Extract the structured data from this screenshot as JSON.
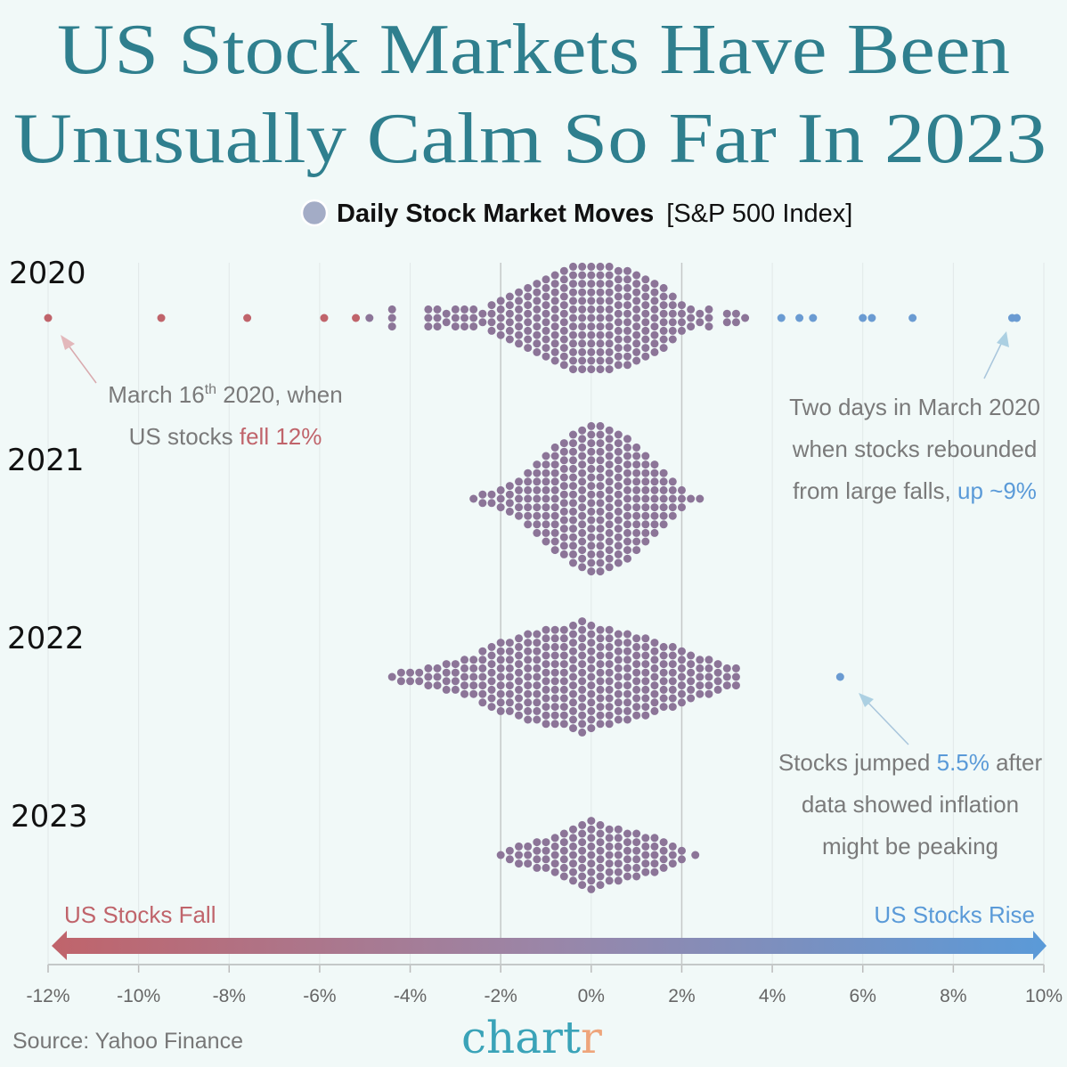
{
  "chart_data": {
    "type": "scatter",
    "subtype": "beeswarm",
    "title_lines": [
      "US Stock Markets Have Been",
      "Unusually Calm So Far In 2023"
    ],
    "legend": {
      "marker_label": "Daily Stock Market Moves",
      "suffix": "[S&P 500 Index]",
      "marker_color": "#a3acc6",
      "placement": "top-center"
    },
    "xlim": [
      -12,
      10
    ],
    "x_ticks": [
      "-12%",
      "-10%",
      "-8%",
      "-6%",
      "-4%",
      "-2%",
      "0%",
      "2%",
      "4%",
      "6%",
      "8%",
      "10%"
    ],
    "x_tick_values": [
      -12,
      -10,
      -8,
      -6,
      -4,
      -2,
      0,
      2,
      4,
      6,
      8,
      10
    ],
    "grid": true,
    "direction_labels": {
      "fall": "US Stocks Fall",
      "rise": "US Stocks Rise"
    },
    "colors": {
      "fall": "#c0646b",
      "neutral": "#8c7598",
      "rise": "#6a9bd2"
    },
    "series": [
      {
        "name": "2020",
        "bins": [
          [
            -12.0,
            1
          ],
          [
            -9.5,
            1
          ],
          [
            -7.6,
            1
          ],
          [
            -5.9,
            1
          ],
          [
            -5.2,
            1
          ],
          [
            -4.9,
            1
          ],
          [
            -4.4,
            3
          ],
          [
            -3.6,
            3
          ],
          [
            -3.4,
            3
          ],
          [
            -3.2,
            2
          ],
          [
            -3.0,
            3
          ],
          [
            -2.8,
            3
          ],
          [
            -2.6,
            3
          ],
          [
            -2.4,
            2
          ],
          [
            -2.2,
            4
          ],
          [
            -2.0,
            5
          ],
          [
            -1.8,
            6
          ],
          [
            -1.6,
            7
          ],
          [
            -1.4,
            8
          ],
          [
            -1.2,
            9
          ],
          [
            -1.0,
            10
          ],
          [
            -0.8,
            11
          ],
          [
            -0.6,
            12
          ],
          [
            -0.4,
            13
          ],
          [
            -0.2,
            13
          ],
          [
            0.0,
            13
          ],
          [
            0.2,
            13
          ],
          [
            0.4,
            13
          ],
          [
            0.6,
            12
          ],
          [
            0.8,
            12
          ],
          [
            1.0,
            11
          ],
          [
            1.2,
            10
          ],
          [
            1.4,
            9
          ],
          [
            1.6,
            8
          ],
          [
            1.8,
            6
          ],
          [
            2.0,
            4
          ],
          [
            2.2,
            3
          ],
          [
            2.4,
            2
          ],
          [
            2.6,
            3
          ],
          [
            3.0,
            2
          ],
          [
            3.2,
            2
          ],
          [
            3.4,
            1
          ],
          [
            4.2,
            1
          ],
          [
            4.6,
            1
          ],
          [
            4.9,
            1
          ],
          [
            6.0,
            1
          ],
          [
            6.2,
            1
          ],
          [
            7.1,
            1
          ],
          [
            9.3,
            1
          ],
          [
            9.4,
            1
          ]
        ]
      },
      {
        "name": "2021",
        "bins": [
          [
            -2.6,
            1
          ],
          [
            -2.4,
            2
          ],
          [
            -2.2,
            2
          ],
          [
            -2.0,
            3
          ],
          [
            -1.8,
            4
          ],
          [
            -1.6,
            5
          ],
          [
            -1.4,
            7
          ],
          [
            -1.2,
            9
          ],
          [
            -1.0,
            11
          ],
          [
            -0.8,
            13
          ],
          [
            -0.6,
            14
          ],
          [
            -0.4,
            16
          ],
          [
            -0.2,
            17
          ],
          [
            0.0,
            18
          ],
          [
            0.2,
            18
          ],
          [
            0.4,
            17
          ],
          [
            0.6,
            16
          ],
          [
            0.8,
            15
          ],
          [
            1.0,
            13
          ],
          [
            1.2,
            11
          ],
          [
            1.4,
            9
          ],
          [
            1.6,
            7
          ],
          [
            1.8,
            5
          ],
          [
            2.0,
            3
          ],
          [
            2.2,
            1
          ],
          [
            2.4,
            1
          ]
        ]
      },
      {
        "name": "2022",
        "bins": [
          [
            -4.4,
            1
          ],
          [
            -4.2,
            2
          ],
          [
            -4.0,
            2
          ],
          [
            -3.8,
            2
          ],
          [
            -3.6,
            3
          ],
          [
            -3.4,
            3
          ],
          [
            -3.2,
            4
          ],
          [
            -3.0,
            4
          ],
          [
            -2.8,
            5
          ],
          [
            -2.6,
            5
          ],
          [
            -2.4,
            7
          ],
          [
            -2.2,
            8
          ],
          [
            -2.0,
            9
          ],
          [
            -1.8,
            9
          ],
          [
            -1.6,
            10
          ],
          [
            -1.4,
            11
          ],
          [
            -1.2,
            11
          ],
          [
            -1.0,
            12
          ],
          [
            -0.8,
            12
          ],
          [
            -0.6,
            12
          ],
          [
            -0.4,
            13
          ],
          [
            -0.2,
            14
          ],
          [
            0.0,
            13
          ],
          [
            0.2,
            12
          ],
          [
            0.4,
            12
          ],
          [
            0.6,
            11
          ],
          [
            0.8,
            11
          ],
          [
            1.0,
            10
          ],
          [
            1.2,
            10
          ],
          [
            1.4,
            9
          ],
          [
            1.6,
            8
          ],
          [
            1.8,
            8
          ],
          [
            2.0,
            7
          ],
          [
            2.2,
            6
          ],
          [
            2.4,
            5
          ],
          [
            2.6,
            5
          ],
          [
            2.8,
            4
          ],
          [
            3.0,
            3
          ],
          [
            3.2,
            3
          ],
          [
            5.5,
            1
          ]
        ]
      },
      {
        "name": "2023",
        "bins": [
          [
            -2.0,
            1
          ],
          [
            -1.8,
            2
          ],
          [
            -1.6,
            3
          ],
          [
            -1.4,
            3
          ],
          [
            -1.2,
            4
          ],
          [
            -1.0,
            4
          ],
          [
            -0.8,
            5
          ],
          [
            -0.6,
            6
          ],
          [
            -0.4,
            7
          ],
          [
            -0.2,
            8
          ],
          [
            0.0,
            9
          ],
          [
            0.2,
            8
          ],
          [
            0.4,
            7
          ],
          [
            0.6,
            7
          ],
          [
            0.8,
            6
          ],
          [
            1.0,
            6
          ],
          [
            1.2,
            5
          ],
          [
            1.4,
            5
          ],
          [
            1.6,
            4
          ],
          [
            1.8,
            3
          ],
          [
            2.0,
            2
          ],
          [
            2.3,
            1
          ]
        ]
      }
    ],
    "annotations": {
      "march16": {
        "line1_pre": "March 16",
        "line1_sup": "th",
        "line1_post": " 2020, when",
        "line2_pre": "US stocks ",
        "line2_hl": "fell 12%"
      },
      "rebound": {
        "line1": "Two days in March 2020",
        "line2": "when stocks rebounded",
        "line3_pre": "from large falls, ",
        "line3_hl": "up ~9%"
      },
      "jump": {
        "line1_pre": "Stocks jumped ",
        "line1_hl": "5.5%",
        "line1_post": " after",
        "line2": "data showed inflation",
        "line3": "might be peaking"
      }
    }
  },
  "footer": {
    "source": "Source: Yahoo Finance",
    "logo_main": "chart",
    "logo_end": "r"
  }
}
